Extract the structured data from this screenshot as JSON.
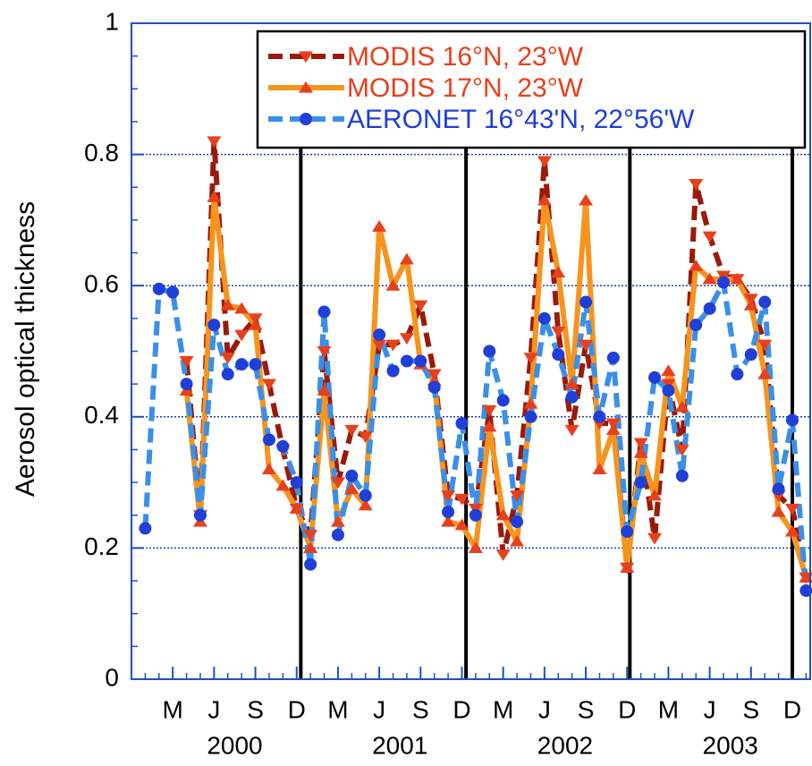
{
  "chart_data": {
    "type": "line",
    "y_label": "Aerosol optical thickness",
    "x": [
      1,
      2,
      3,
      4,
      5,
      6,
      7,
      8,
      9,
      10,
      11,
      12,
      13,
      14,
      15,
      16,
      17,
      18,
      19,
      20,
      21,
      22,
      23,
      24,
      25,
      26,
      27,
      28,
      29,
      30,
      31,
      32,
      33,
      34,
      35,
      36,
      37,
      38,
      39,
      40,
      41,
      42,
      43,
      44,
      45,
      46,
      47,
      48,
      49
    ],
    "series": [
      {
        "name": "MODIS 16°N, 23°W",
        "color": "#9a1a0a",
        "text_color": "#e8401c",
        "marker": "triangle-down",
        "marker_color": "#e8401c",
        "dash": true,
        "values": [
          null,
          null,
          null,
          0.485,
          0.25,
          0.82,
          0.49,
          0.525,
          0.55,
          0.45,
          0.35,
          0.26,
          0.22,
          0.5,
          0.3,
          0.38,
          0.37,
          0.51,
          0.51,
          0.52,
          0.57,
          0.465,
          0.28,
          0.275,
          0.26,
          0.41,
          0.19,
          0.28,
          0.49,
          0.79,
          0.53,
          0.38,
          0.51,
          0.39,
          0.39,
          0.17,
          0.36,
          0.215,
          0.45,
          0.35,
          0.755,
          0.675,
          0.615,
          0.61,
          0.58,
          0.51,
          0.28,
          0.26,
          0.155
        ]
      },
      {
        "name": "MODIS 17°N, 23°W",
        "color": "#f7941d",
        "text_color": "#e8401c",
        "marker": "triangle-up",
        "marker_color": "#e8401c",
        "dash": false,
        "values": [
          null,
          null,
          null,
          0.44,
          0.24,
          0.735,
          0.57,
          0.565,
          0.54,
          0.32,
          0.295,
          0.26,
          0.2,
          0.44,
          0.24,
          0.29,
          0.265,
          0.69,
          0.6,
          0.64,
          0.48,
          0.455,
          0.24,
          0.235,
          0.2,
          0.385,
          0.25,
          0.21,
          0.42,
          0.73,
          0.62,
          0.45,
          0.73,
          0.32,
          0.38,
          0.17,
          0.345,
          0.28,
          0.47,
          0.415,
          0.63,
          0.61,
          0.61,
          0.61,
          0.57,
          0.465,
          0.255,
          0.225,
          0.155
        ]
      },
      {
        "name": "AERONET 16°43'N, 22°56'W",
        "color": "#3a8fe8",
        "text_color": "#1f3fd8",
        "marker": "circle",
        "marker_color": "#1f3fd8",
        "dash": true,
        "values": [
          0.23,
          0.595,
          0.59,
          0.45,
          0.25,
          0.54,
          0.465,
          0.48,
          0.48,
          0.365,
          0.355,
          0.3,
          0.175,
          0.56,
          0.22,
          0.31,
          0.28,
          0.525,
          0.47,
          0.485,
          0.485,
          0.445,
          0.255,
          0.39,
          0.25,
          0.5,
          0.425,
          0.24,
          0.4,
          0.55,
          0.495,
          0.43,
          0.575,
          0.4,
          0.49,
          0.225,
          0.3,
          0.46,
          0.44,
          0.31,
          0.54,
          0.565,
          0.605,
          0.465,
          0.495,
          0.575,
          0.29,
          0.395,
          0.135
        ]
      }
    ],
    "xlim": [
      0,
      49.3
    ],
    "xticks": [
      {
        "value": 3,
        "label": "M"
      },
      {
        "value": 6,
        "label": "J"
      },
      {
        "value": 9,
        "label": "S"
      },
      {
        "value": 12,
        "label": "D"
      },
      {
        "value": 15,
        "label": "M"
      },
      {
        "value": 18,
        "label": "J"
      },
      {
        "value": 21,
        "label": "S"
      },
      {
        "value": 24,
        "label": "D"
      },
      {
        "value": 27,
        "label": "M"
      },
      {
        "value": 30,
        "label": "J"
      },
      {
        "value": 33,
        "label": "S"
      },
      {
        "value": 36,
        "label": "D"
      },
      {
        "value": 39,
        "label": "M"
      },
      {
        "value": 42,
        "label": "J"
      },
      {
        "value": 45,
        "label": "S"
      },
      {
        "value": 48,
        "label": "D"
      }
    ],
    "years": [
      "2000",
      "2001",
      "2002",
      "2003"
    ],
    "year_dividers": [
      12.3,
      24.3,
      36.2,
      48
    ],
    "ylim": [
      0,
      1
    ],
    "yticks": [
      0,
      0.2,
      0.4,
      0.6,
      0.8,
      1
    ],
    "grid": true,
    "legend": "top-right"
  }
}
